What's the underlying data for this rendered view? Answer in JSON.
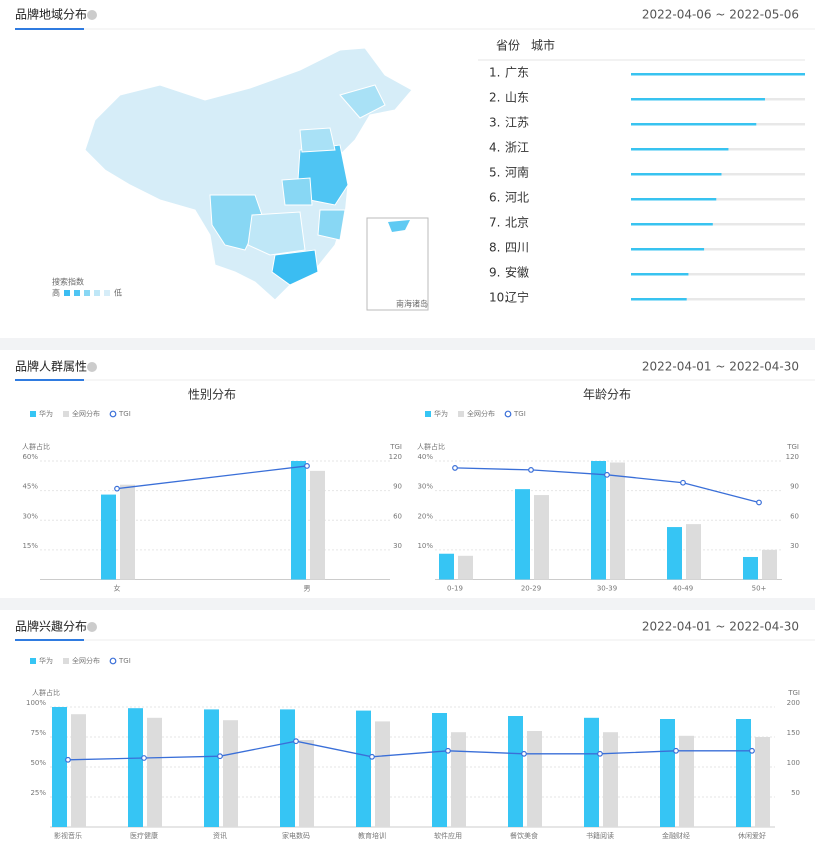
{
  "region_panel": {
    "title": "品牌地域分布",
    "date_range": "2022-04-06 ~ 2022-05-06",
    "tabs": [
      "省份",
      "城市"
    ],
    "map_legend": {
      "title": "搜索指数",
      "high": "高",
      "low": "低"
    },
    "map_note": "南海诸岛",
    "ranking": {
      "ranks": [
        "1.",
        "2.",
        "3.",
        "4.",
        "5.",
        "6.",
        "7.",
        "8.",
        "9.",
        "10."
      ],
      "names": [
        "广东",
        "山东",
        "江苏",
        "浙江",
        "河南",
        "河北",
        "北京",
        "四川",
        "安徽",
        "辽宁"
      ],
      "values": [
        100,
        77,
        72,
        56,
        52,
        49,
        47,
        42,
        33,
        32
      ],
      "color": "#38c3f0"
    }
  },
  "crowd_panel": {
    "title": "品牌人群属性",
    "date_range": "2022-04-01 ~ 2022-04-30"
  },
  "interest_panel": {
    "title": "品牌兴趣分布",
    "date_range": "2022-04-01 ~ 2022-04-30"
  },
  "chart_data": [
    {
      "type": "bar_line",
      "title": "性别分布",
      "y_label": "人群占比",
      "y2_label": "TGI",
      "categories": [
        "女",
        "男"
      ],
      "series": [
        {
          "name": "华为",
          "color": "#36c5f4",
          "values": [
            43,
            60
          ]
        },
        {
          "name": "全网分布",
          "color": "#dcdcdc",
          "values": [
            48,
            55
          ]
        },
        {
          "name": "TGI",
          "color": "#3a6fd8",
          "axis": "y2",
          "values": [
            92,
            115
          ]
        }
      ],
      "ylim": [
        0,
        60
      ],
      "yticks": [
        {
          "value": 15,
          "label": "15%"
        },
        {
          "value": 30,
          "label": "30%"
        },
        {
          "value": 45,
          "label": "45%"
        },
        {
          "value": 60,
          "label": "60%"
        }
      ],
      "y2lim": [
        0,
        120
      ],
      "y2ticks": [
        30,
        60,
        90,
        120
      ],
      "grid": true
    },
    {
      "type": "bar_line",
      "title": "年龄分布",
      "y_label": "人群占比",
      "y2_label": "TGI",
      "categories": [
        "0-19",
        "20-29",
        "30-39",
        "40-49",
        "50+"
      ],
      "series": [
        {
          "name": "华为",
          "color": "#36c5f4",
          "values": [
            8.7,
            30.5,
            40,
            17.7,
            7.6
          ]
        },
        {
          "name": "全网分布",
          "color": "#dcdcdc",
          "values": [
            8,
            28.5,
            39.5,
            18.7,
            10
          ]
        },
        {
          "name": "TGI",
          "color": "#3a6fd8",
          "axis": "y2",
          "values": [
            113,
            111,
            106,
            98,
            78
          ]
        }
      ],
      "ylim": [
        0,
        40
      ],
      "yticks": [
        {
          "value": 10,
          "label": "10%"
        },
        {
          "value": 20,
          "label": "20%"
        },
        {
          "value": 30,
          "label": "30%"
        },
        {
          "value": 40,
          "label": "40%"
        }
      ],
      "y2lim": [
        0,
        120
      ],
      "y2ticks": [
        30,
        60,
        90,
        120
      ],
      "grid": true
    },
    {
      "type": "bar_line",
      "y_label": "人群占比",
      "y2_label": "TGI",
      "categories": [
        "影视音乐",
        "医疗健康",
        "资讯",
        "家电数码",
        "教育培训",
        "软件应用",
        "餐饮美食",
        "书籍阅读",
        "金融财经",
        "休闲爱好"
      ],
      "series": [
        {
          "name": "华为",
          "color": "#36c5f4",
          "values": [
            100,
            99,
            98,
            98,
            97,
            95,
            92.5,
            91,
            90,
            90
          ]
        },
        {
          "name": "全网分布",
          "color": "#dcdcdc",
          "values": [
            94,
            91,
            89,
            72.5,
            88,
            79,
            80,
            79,
            76,
            75
          ]
        },
        {
          "name": "TGI",
          "color": "#3a6fd8",
          "axis": "y2",
          "values": [
            112,
            115,
            118,
            143,
            117,
            127,
            122,
            122,
            127,
            127
          ]
        }
      ],
      "ylim": [
        0,
        100
      ],
      "yticks": [
        {
          "value": 25,
          "label": "25%"
        },
        {
          "value": 50,
          "label": "50%"
        },
        {
          "value": 75,
          "label": "75%"
        },
        {
          "value": 100,
          "label": "100%"
        }
      ],
      "y2lim": [
        0,
        200
      ],
      "y2ticks": [
        50,
        100,
        150,
        200
      ],
      "grid": true
    }
  ]
}
